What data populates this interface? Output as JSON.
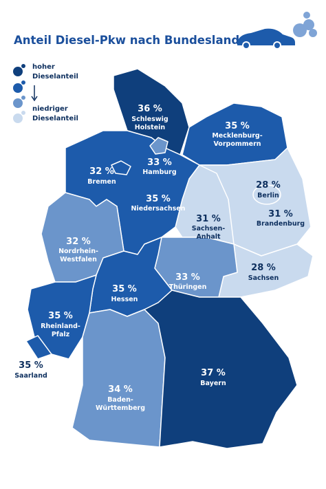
{
  "header": {
    "title": "Anteil Diesel-Pkw nach Bundesland"
  },
  "legend": {
    "high": [
      "hoher",
      "Dieselanteil"
    ],
    "low": [
      "niedriger",
      "Dieselanteil"
    ]
  },
  "states": [
    {
      "value": "36 %",
      "name": [
        "Schleswig",
        "Holstein"
      ]
    },
    {
      "value": "35 %",
      "name": [
        "Mecklenburg-",
        "Vorpommern"
      ]
    },
    {
      "value": "32 %",
      "name": [
        "Bremen"
      ]
    },
    {
      "value": "33 %",
      "name": [
        "Hamburg"
      ]
    },
    {
      "value": "35 %",
      "name": [
        "Niedersachsen"
      ]
    },
    {
      "value": "28 %",
      "name": [
        "Berlin"
      ]
    },
    {
      "value": "31 %",
      "name": [
        "Brandenburg"
      ]
    },
    {
      "value": "31 %",
      "name": [
        "Sachsen-",
        "Anhalt"
      ]
    },
    {
      "value": "32 %",
      "name": [
        "Nordrhein-",
        "Westfalen"
      ]
    },
    {
      "value": "28 %",
      "name": [
        "Sachsen"
      ]
    },
    {
      "value": "33 %",
      "name": [
        "Thüringen"
      ]
    },
    {
      "value": "35 %",
      "name": [
        "Hessen"
      ]
    },
    {
      "value": "35 %",
      "name": [
        "Rheinland-",
        "Pfalz"
      ]
    },
    {
      "value": "35 %",
      "name": [
        "Saarland"
      ]
    },
    {
      "value": "37 %",
      "name": [
        "Bayern"
      ]
    },
    {
      "value": "34 %",
      "name": [
        "Baden-",
        "Württemberg"
      ]
    }
  ]
}
